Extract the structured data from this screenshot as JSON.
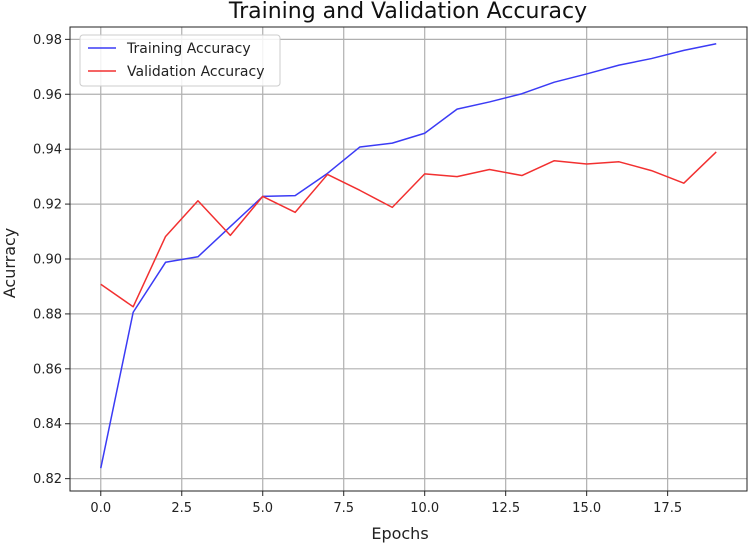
{
  "chart_data": {
    "type": "line",
    "title": "Training and Validation Accuracy",
    "xlabel": "Epochs",
    "ylabel": "Acurracy",
    "xlim": [
      -0.95,
      19.95
    ],
    "ylim": [
      0.8155,
      0.9845
    ],
    "x_ticks": [
      0,
      2.5,
      5,
      7.5,
      10,
      12.5,
      15,
      17.5
    ],
    "x_tick_labels": [
      "0.0",
      "2.5",
      "5.0",
      "7.5",
      "10.0",
      "12.5",
      "15.0",
      "17.5"
    ],
    "y_ticks": [
      0.82,
      0.84,
      0.86,
      0.88,
      0.9,
      0.92,
      0.94,
      0.96,
      0.98
    ],
    "y_tick_labels": [
      "0.82",
      "0.84",
      "0.86",
      "0.88",
      "0.90",
      "0.92",
      "0.94",
      "0.96",
      "0.98"
    ],
    "grid": true,
    "legend_position": "top-left",
    "x": [
      0,
      1,
      2,
      3,
      4,
      5,
      6,
      7,
      8,
      9,
      10,
      11,
      12,
      13,
      14,
      15,
      16,
      17,
      18,
      19
    ],
    "series": [
      {
        "name": "Training Accuracy",
        "color": "#3b3bf5",
        "values": [
          0.8238,
          0.8806,
          0.8988,
          0.9008,
          0.9118,
          0.9228,
          0.9231,
          0.9312,
          0.9408,
          0.9422,
          0.9458,
          0.9546,
          0.9572,
          0.9602,
          0.9644,
          0.9674,
          0.9706,
          0.973,
          0.976,
          0.9784
        ]
      },
      {
        "name": "Validation Accuracy",
        "color": "#f23030",
        "values": [
          0.8908,
          0.8826,
          0.9082,
          0.9212,
          0.9086,
          0.9228,
          0.917,
          0.9308,
          0.925,
          0.9188,
          0.931,
          0.93,
          0.9326,
          0.9304,
          0.9358,
          0.9346,
          0.9354,
          0.9322,
          0.9276,
          0.939
        ]
      }
    ]
  }
}
